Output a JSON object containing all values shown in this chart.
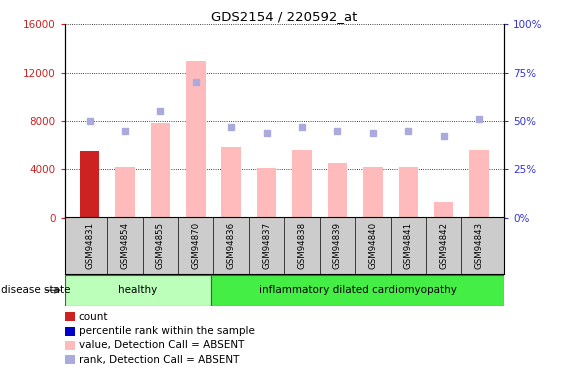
{
  "title": "GDS2154 / 220592_at",
  "samples": [
    "GSM94831",
    "GSM94854",
    "GSM94855",
    "GSM94870",
    "GSM94836",
    "GSM94837",
    "GSM94838",
    "GSM94839",
    "GSM94840",
    "GSM94841",
    "GSM94842",
    "GSM94843"
  ],
  "bar_values": [
    5500,
    4200,
    7800,
    13000,
    5800,
    4100,
    5600,
    4500,
    4200,
    4200,
    1300,
    5600
  ],
  "bar_colors": [
    "#cc2222",
    "#ffbbbb",
    "#ffbbbb",
    "#ffbbbb",
    "#ffbbbb",
    "#ffbbbb",
    "#ffbbbb",
    "#ffbbbb",
    "#ffbbbb",
    "#ffbbbb",
    "#ffbbbb",
    "#ffbbbb"
  ],
  "rank_dots_pct": [
    50,
    45,
    55,
    70,
    47,
    44,
    47,
    45,
    44,
    45,
    42,
    51
  ],
  "ylim_left": [
    0,
    16000
  ],
  "yticks_left": [
    0,
    4000,
    8000,
    12000,
    16000
  ],
  "ylim_right": [
    0,
    100
  ],
  "yticks_right": [
    0,
    25,
    50,
    75,
    100
  ],
  "left_tick_color": "#cc2222",
  "right_tick_color": "#3333cc",
  "groups": [
    {
      "label": "healthy",
      "start": 0,
      "end": 4,
      "color": "#bbffbb"
    },
    {
      "label": "inflammatory dilated cardiomyopathy",
      "start": 4,
      "end": 12,
      "color": "#44ee44"
    }
  ],
  "disease_state_label": "disease state",
  "legend_items": [
    {
      "color": "#cc2222",
      "label": "count"
    },
    {
      "color": "#0000cc",
      "label": "percentile rank within the sample"
    },
    {
      "color": "#ffbbbb",
      "label": "value, Detection Call = ABSENT"
    },
    {
      "color": "#aaaadd",
      "label": "rank, Detection Call = ABSENT"
    }
  ],
  "grid_color": "black",
  "tick_area_color": "#cccccc",
  "bg_color": "#ffffff",
  "n_samples": 12,
  "n_healthy": 4
}
